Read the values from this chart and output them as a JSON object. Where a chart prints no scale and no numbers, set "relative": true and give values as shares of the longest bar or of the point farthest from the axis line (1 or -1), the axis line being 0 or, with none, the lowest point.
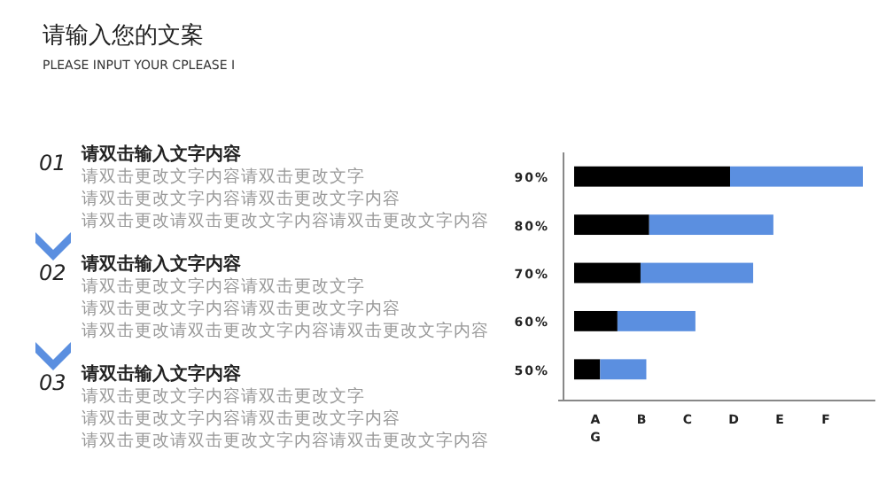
{
  "chart_data": [
    {
      "type": "other",
      "title": "请输入您的文案",
      "subtitle": "PLEASE INPUT YOUR CPLEASE I",
      "annotations": [
        "01",
        "请双击输入文字内容",
        "请双击更改文字内容请双击更改文字",
        "请双击更改文字内容请双击更改文字内容",
        "请双击更改请双击更改文字内容请双击更改文字内容",
        "02",
        "请双击输入文字内容",
        "请双击更改文字内容请双击更改文字",
        "请双击更改文字内容请双击更改文字内容",
        "请双击更改请双击更改文字内容请双击更改文字内容",
        "03",
        "请双击输入文字内容",
        "请双击更改文字内容请双击更改文字",
        "请双击更改文字内容请双击更改文字内容",
        "请双击更改请双击更改文字内容请双击更改文字内容"
      ]
    },
    {
      "type": "bar",
      "orientation": "horizontal",
      "stacked": true,
      "relative": true,
      "categories": [
        "90%",
        "80%",
        "70%",
        "60%",
        "50%"
      ],
      "series": [
        {
          "color": "#000000",
          "values": [
            0.54,
            0.26,
            0.23,
            0.15,
            0.09
          ]
        },
        {
          "color": "#5b8fe0",
          "values": [
            0.46,
            0.43,
            0.39,
            0.27,
            0.16
          ]
        }
      ],
      "annotations": [
        "A",
        "B",
        "C",
        "D",
        "E",
        "F",
        "G"
      ]
    }
  ]
}
